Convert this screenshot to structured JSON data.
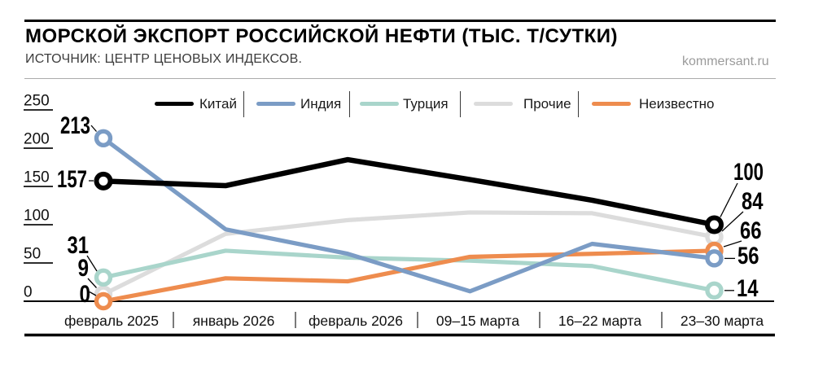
{
  "header": {
    "title": "МОРСКОЙ ЭКСПОРТ РОССИЙСКОЙ НЕФТИ (ТЫС. Т/СУТКИ)",
    "source": "ИСТОЧНИК: ЦЕНТР ЦЕНОВЫХ ИНДЕКСОВ.",
    "site": "kommersant.ru"
  },
  "chart_data": {
    "type": "line",
    "title": "МОРСКОЙ ЭКСПОРТ РОССИЙСКОЙ НЕФТИ (ТЫС. Т/СУТКИ)",
    "categories": [
      "февраль 2025",
      "январь 2026",
      "февраль 2026",
      "09–15 марта",
      "16–22 марта",
      "23–30 марта"
    ],
    "series": [
      {
        "name": "Китай",
        "slug": "china",
        "color": "#000000",
        "values": [
          157,
          151,
          185,
          159,
          132,
          100
        ],
        "first_label": "157",
        "last_label": "100"
      },
      {
        "name": "Индия",
        "slug": "india",
        "color": "#7b9cc5",
        "values": [
          213,
          94,
          62,
          13,
          75,
          56
        ],
        "first_label": "213",
        "last_label": "56"
      },
      {
        "name": "Турция",
        "slug": "turkey",
        "color": "#a9d5cb",
        "values": [
          31,
          66,
          57,
          53,
          46,
          14
        ],
        "first_label": "31",
        "last_label": "14"
      },
      {
        "name": "Прочие",
        "slug": "others",
        "color": "#dcdcdc",
        "values": [
          9,
          88,
          106,
          116,
          115,
          84
        ],
        "first_label": "9",
        "last_label": "84"
      },
      {
        "name": "Неизвестно",
        "slug": "unknown",
        "color": "#ee8c4e",
        "values": [
          0,
          30,
          26,
          58,
          62,
          66
        ],
        "first_label": "0",
        "last_label": "66"
      }
    ],
    "ylim": [
      0,
      250
    ],
    "yticks": [
      0,
      50,
      100,
      150,
      200,
      250
    ],
    "legend_position": "top",
    "grid": "left-ticks-only"
  }
}
